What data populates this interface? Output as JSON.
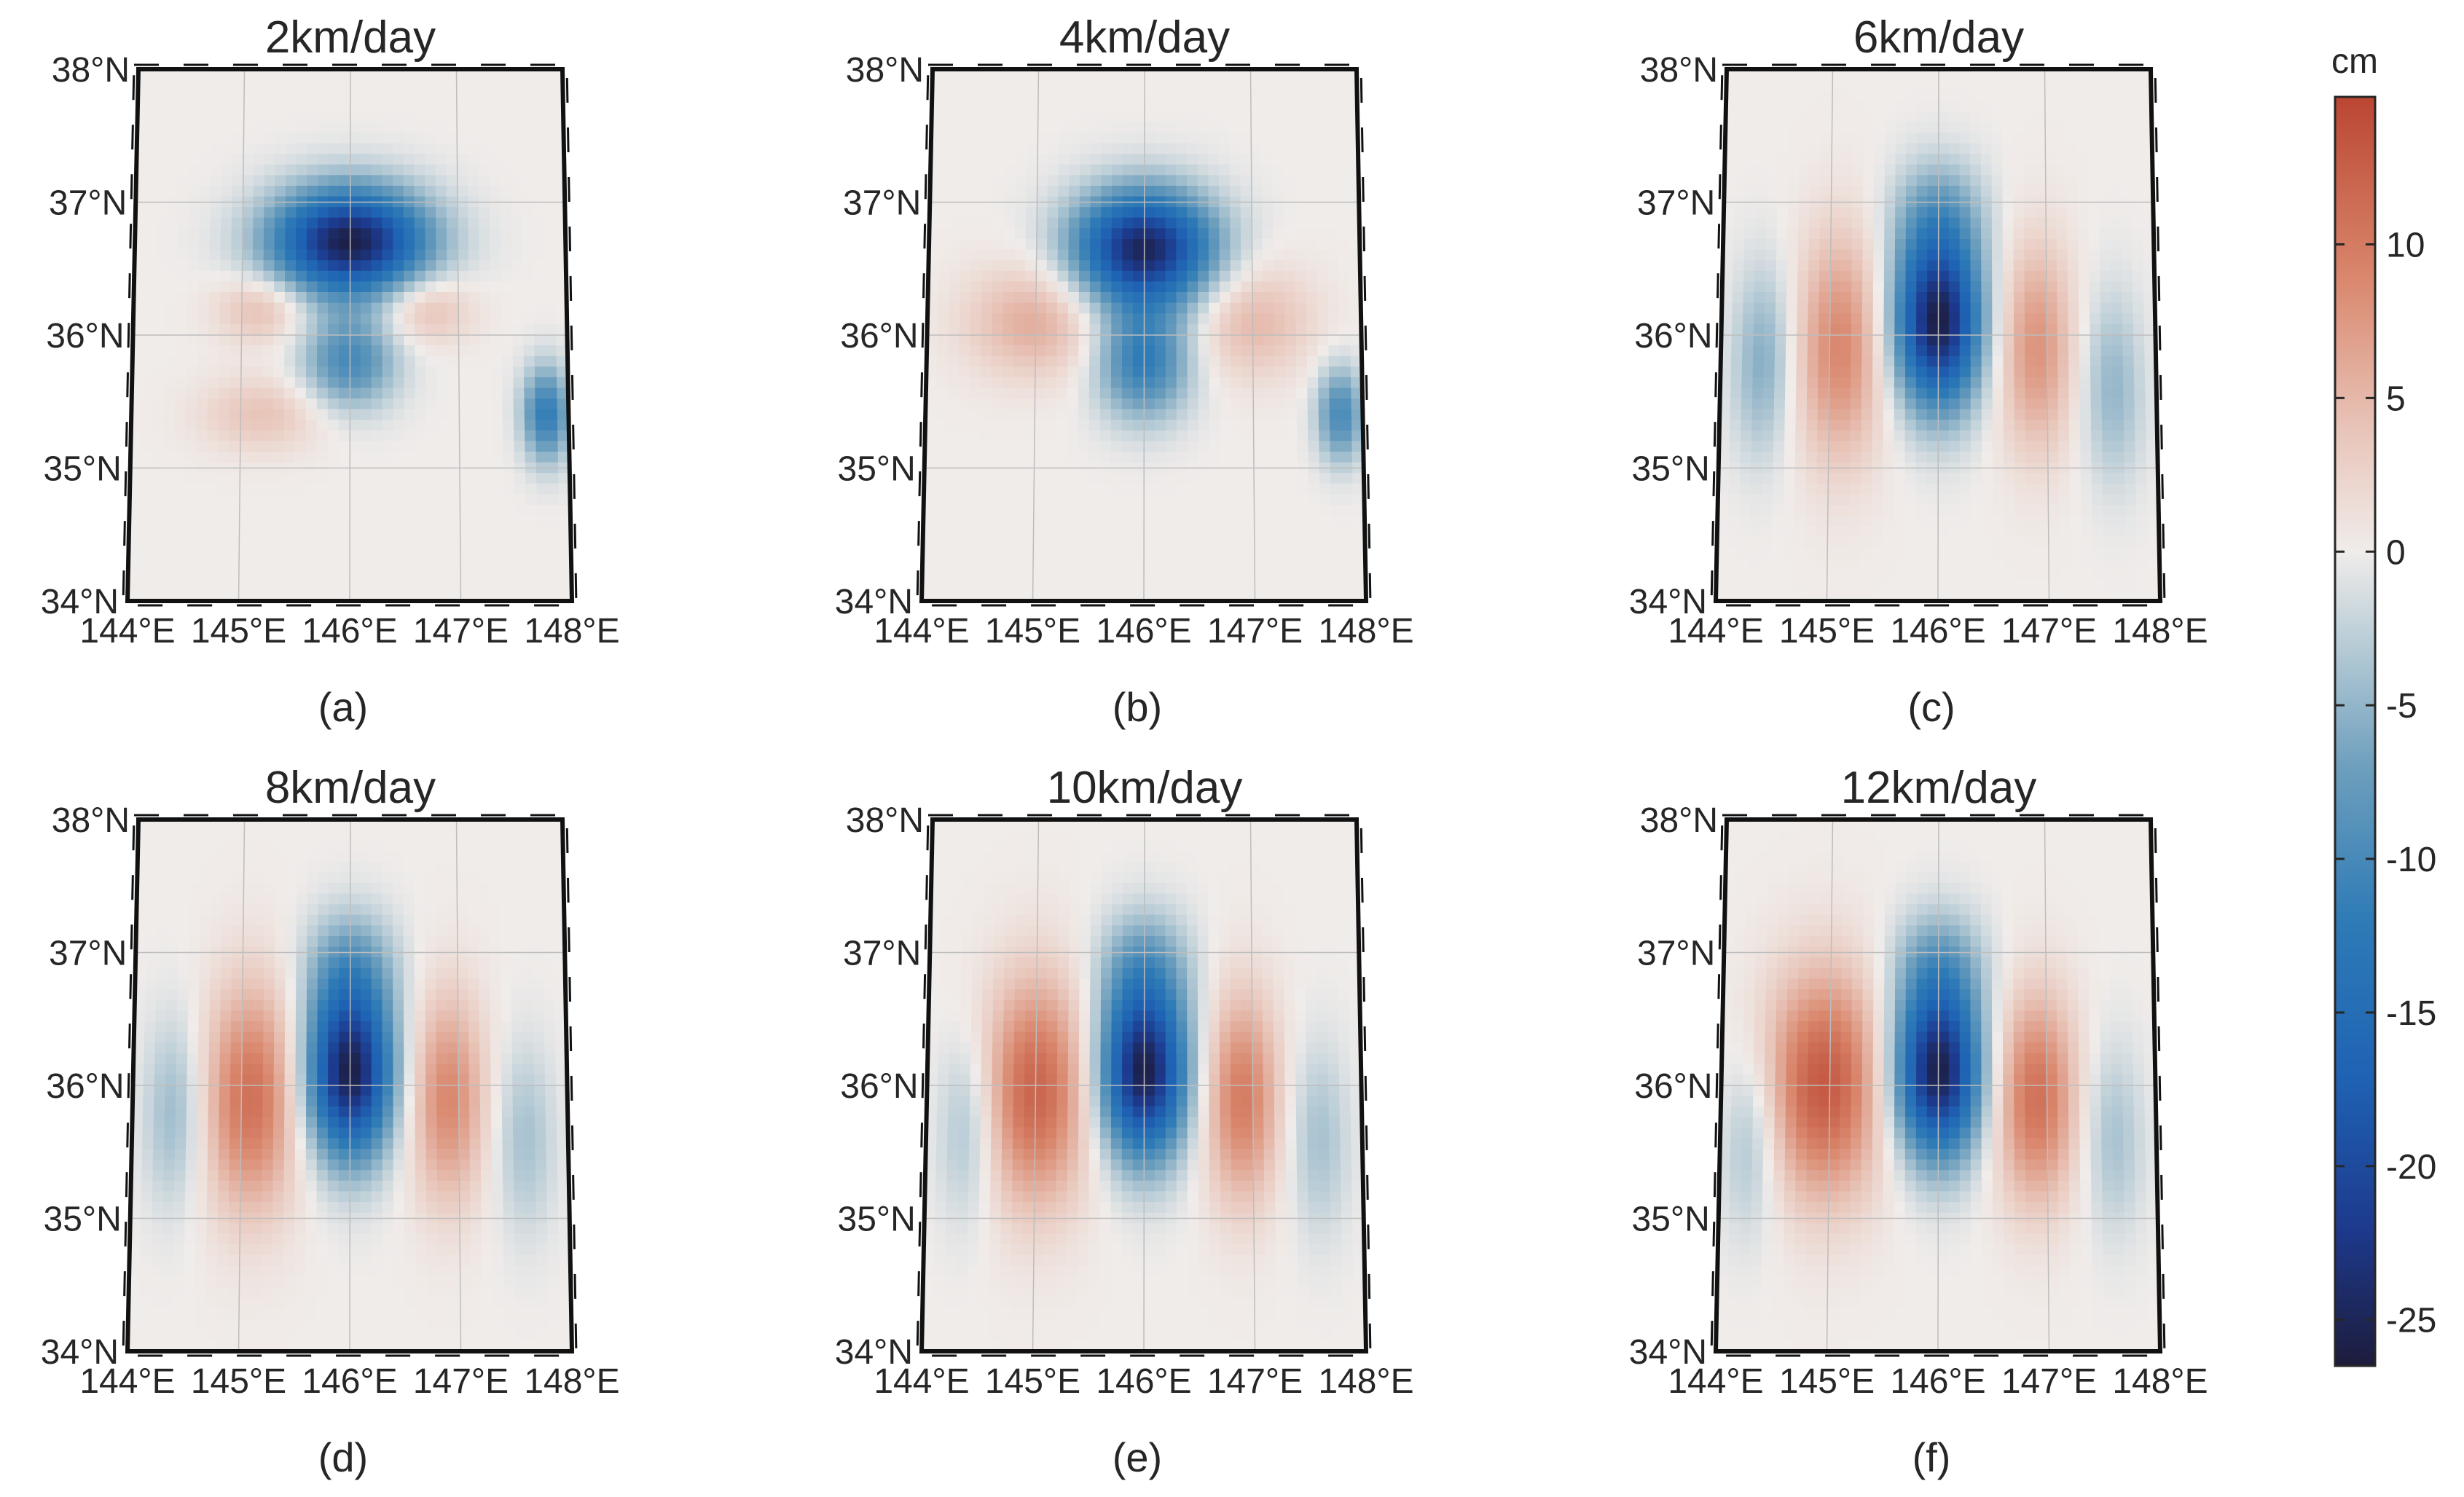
{
  "chart_data": {
    "type": "heatmap",
    "colorbar": {
      "unit": "cm",
      "ticks": [
        10,
        5,
        0,
        -5,
        -10,
        -15,
        -20,
        -25
      ],
      "tick_labels": [
        "10",
        "5",
        "0",
        "-5",
        "-10",
        "-15",
        "-20",
        "-25"
      ],
      "range": [
        -26.5,
        14.8
      ],
      "stops": [
        {
          "v": -26.5,
          "color": "#1d1c3c"
        },
        {
          "v": -22,
          "color": "#1d3a8e"
        },
        {
          "v": -17,
          "color": "#1f63b4"
        },
        {
          "v": -12,
          "color": "#2e7bb6"
        },
        {
          "v": -7,
          "color": "#6e9fbd"
        },
        {
          "v": -3,
          "color": "#b8ccd6"
        },
        {
          "v": 0,
          "color": "#f0ecea"
        },
        {
          "v": 4,
          "color": "#e8c4b8"
        },
        {
          "v": 9,
          "color": "#d9866c"
        },
        {
          "v": 14.8,
          "color": "#bb4632"
        }
      ]
    },
    "axes": {
      "lat_ticks": [
        "38°N",
        "37°N",
        "36°N",
        "35°N",
        "34°N"
      ],
      "lon_ticks": [
        "144°E",
        "145°E",
        "146°E",
        "147°E",
        "148°E"
      ],
      "lat_range": [
        34,
        38
      ],
      "lon_range": [
        144,
        148
      ]
    },
    "panels": [
      {
        "title": "2km/day",
        "label": "(a)",
        "features": [
          {
            "lon": 146.0,
            "lat": 36.7,
            "sx": 0.5,
            "sy": 0.28,
            "amp": -26
          },
          {
            "lon": 146.0,
            "lat": 35.8,
            "sx": 0.3,
            "sy": 0.25,
            "amp": -10
          },
          {
            "lon": 145.2,
            "lat": 36.2,
            "sx": 0.3,
            "sy": 0.18,
            "amp": 5
          },
          {
            "lon": 146.7,
            "lat": 36.2,
            "sx": 0.3,
            "sy": 0.18,
            "amp": 5
          },
          {
            "lon": 145.2,
            "lat": 35.4,
            "sx": 0.4,
            "sy": 0.2,
            "amp": 4
          },
          {
            "lon": 147.8,
            "lat": 35.4,
            "sx": 0.15,
            "sy": 0.25,
            "amp": -12
          }
        ]
      },
      {
        "title": "4km/day",
        "label": "(b)",
        "features": [
          {
            "lon": 146.0,
            "lat": 36.65,
            "sx": 0.45,
            "sy": 0.3,
            "amp": -25
          },
          {
            "lon": 146.0,
            "lat": 35.8,
            "sx": 0.3,
            "sy": 0.3,
            "amp": -12
          },
          {
            "lon": 145.0,
            "lat": 36.1,
            "sx": 0.45,
            "sy": 0.3,
            "amp": 6
          },
          {
            "lon": 147.0,
            "lat": 36.1,
            "sx": 0.4,
            "sy": 0.3,
            "amp": 5
          },
          {
            "lon": 147.8,
            "lat": 35.4,
            "sx": 0.15,
            "sy": 0.25,
            "amp": -10
          }
        ]
      },
      {
        "title": "6km/day",
        "label": "(c)",
        "features": [
          {
            "lon": 146.0,
            "lat": 36.1,
            "sx": 0.28,
            "sy": 0.45,
            "amp": -26
          },
          {
            "lon": 146.0,
            "lat": 36.9,
            "sx": 0.3,
            "sy": 0.3,
            "amp": -6
          },
          {
            "lon": 145.1,
            "lat": 35.9,
            "sx": 0.3,
            "sy": 0.6,
            "amp": 9
          },
          {
            "lon": 146.9,
            "lat": 35.9,
            "sx": 0.25,
            "sy": 0.55,
            "amp": 8
          },
          {
            "lon": 144.4,
            "lat": 35.8,
            "sx": 0.2,
            "sy": 0.5,
            "amp": -6
          },
          {
            "lon": 147.6,
            "lat": 35.6,
            "sx": 0.2,
            "sy": 0.5,
            "amp": -5
          }
        ]
      },
      {
        "title": "8km/day",
        "label": "(d)",
        "features": [
          {
            "lon": 146.0,
            "lat": 36.1,
            "sx": 0.28,
            "sy": 0.45,
            "amp": -26
          },
          {
            "lon": 146.0,
            "lat": 36.9,
            "sx": 0.3,
            "sy": 0.3,
            "amp": -6
          },
          {
            "lon": 145.1,
            "lat": 35.9,
            "sx": 0.32,
            "sy": 0.6,
            "amp": 11
          },
          {
            "lon": 146.9,
            "lat": 35.9,
            "sx": 0.25,
            "sy": 0.55,
            "amp": 9
          },
          {
            "lon": 144.4,
            "lat": 35.8,
            "sx": 0.2,
            "sy": 0.5,
            "amp": -5
          },
          {
            "lon": 147.6,
            "lat": 35.6,
            "sx": 0.2,
            "sy": 0.5,
            "amp": -4
          }
        ]
      },
      {
        "title": "10km/day",
        "label": "(e)",
        "features": [
          {
            "lon": 146.0,
            "lat": 36.1,
            "sx": 0.28,
            "sy": 0.45,
            "amp": -26
          },
          {
            "lon": 146.0,
            "lat": 36.9,
            "sx": 0.3,
            "sy": 0.3,
            "amp": -6
          },
          {
            "lon": 145.0,
            "lat": 35.95,
            "sx": 0.36,
            "sy": 0.6,
            "amp": 12
          },
          {
            "lon": 146.9,
            "lat": 35.9,
            "sx": 0.25,
            "sy": 0.55,
            "amp": 10
          },
          {
            "lon": 144.4,
            "lat": 35.7,
            "sx": 0.2,
            "sy": 0.5,
            "amp": -5
          },
          {
            "lon": 147.6,
            "lat": 35.6,
            "sx": 0.2,
            "sy": 0.5,
            "amp": -4
          }
        ]
      },
      {
        "title": "12km/day",
        "label": "(f)",
        "features": [
          {
            "lon": 146.0,
            "lat": 36.1,
            "sx": 0.28,
            "sy": 0.45,
            "amp": -26
          },
          {
            "lon": 146.0,
            "lat": 36.9,
            "sx": 0.3,
            "sy": 0.3,
            "amp": -6
          },
          {
            "lon": 144.95,
            "lat": 36.0,
            "sx": 0.4,
            "sy": 0.6,
            "amp": 13
          },
          {
            "lon": 146.9,
            "lat": 35.9,
            "sx": 0.27,
            "sy": 0.55,
            "amp": 11
          },
          {
            "lon": 144.3,
            "lat": 35.6,
            "sx": 0.2,
            "sy": 0.5,
            "amp": -5
          },
          {
            "lon": 147.6,
            "lat": 35.6,
            "sx": 0.2,
            "sy": 0.5,
            "amp": -4
          }
        ]
      }
    ]
  }
}
